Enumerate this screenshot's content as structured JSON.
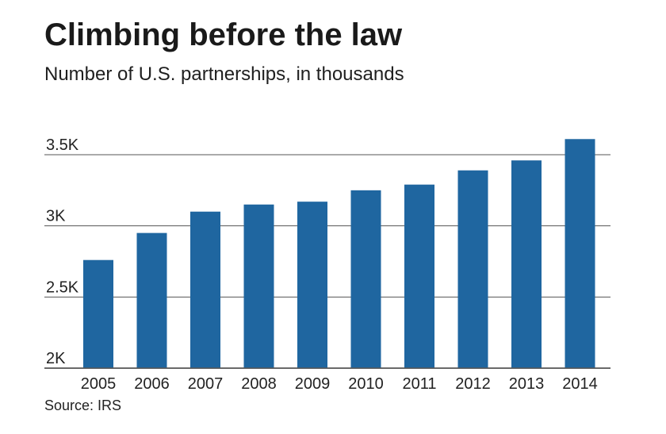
{
  "header": {
    "title": "Climbing before the law",
    "subtitle": "Number of U.S. partnerships, in thousands"
  },
  "footer": {
    "source": "Source: IRS"
  },
  "colors": {
    "bar": "#1f66a0",
    "gridline": "#555555",
    "text": "#222222"
  },
  "chart_data": {
    "type": "bar",
    "title": "Climbing before the law",
    "subtitle": "Number of U.S. partnerships, in thousands",
    "xlabel": "",
    "ylabel": "",
    "categories": [
      "2005",
      "2006",
      "2007",
      "2008",
      "2009",
      "2010",
      "2011",
      "2012",
      "2013",
      "2014"
    ],
    "values": [
      2.76,
      2.95,
      3.1,
      3.15,
      3.17,
      3.25,
      3.29,
      3.39,
      3.46,
      3.61
    ],
    "ylim": [
      2,
      3.5
    ],
    "yticks": [
      2,
      2.5,
      3,
      3.5
    ],
    "ytick_labels": [
      "2K",
      "2.5K",
      "3K",
      "3.5K"
    ],
    "grid": true,
    "legend": "none"
  }
}
